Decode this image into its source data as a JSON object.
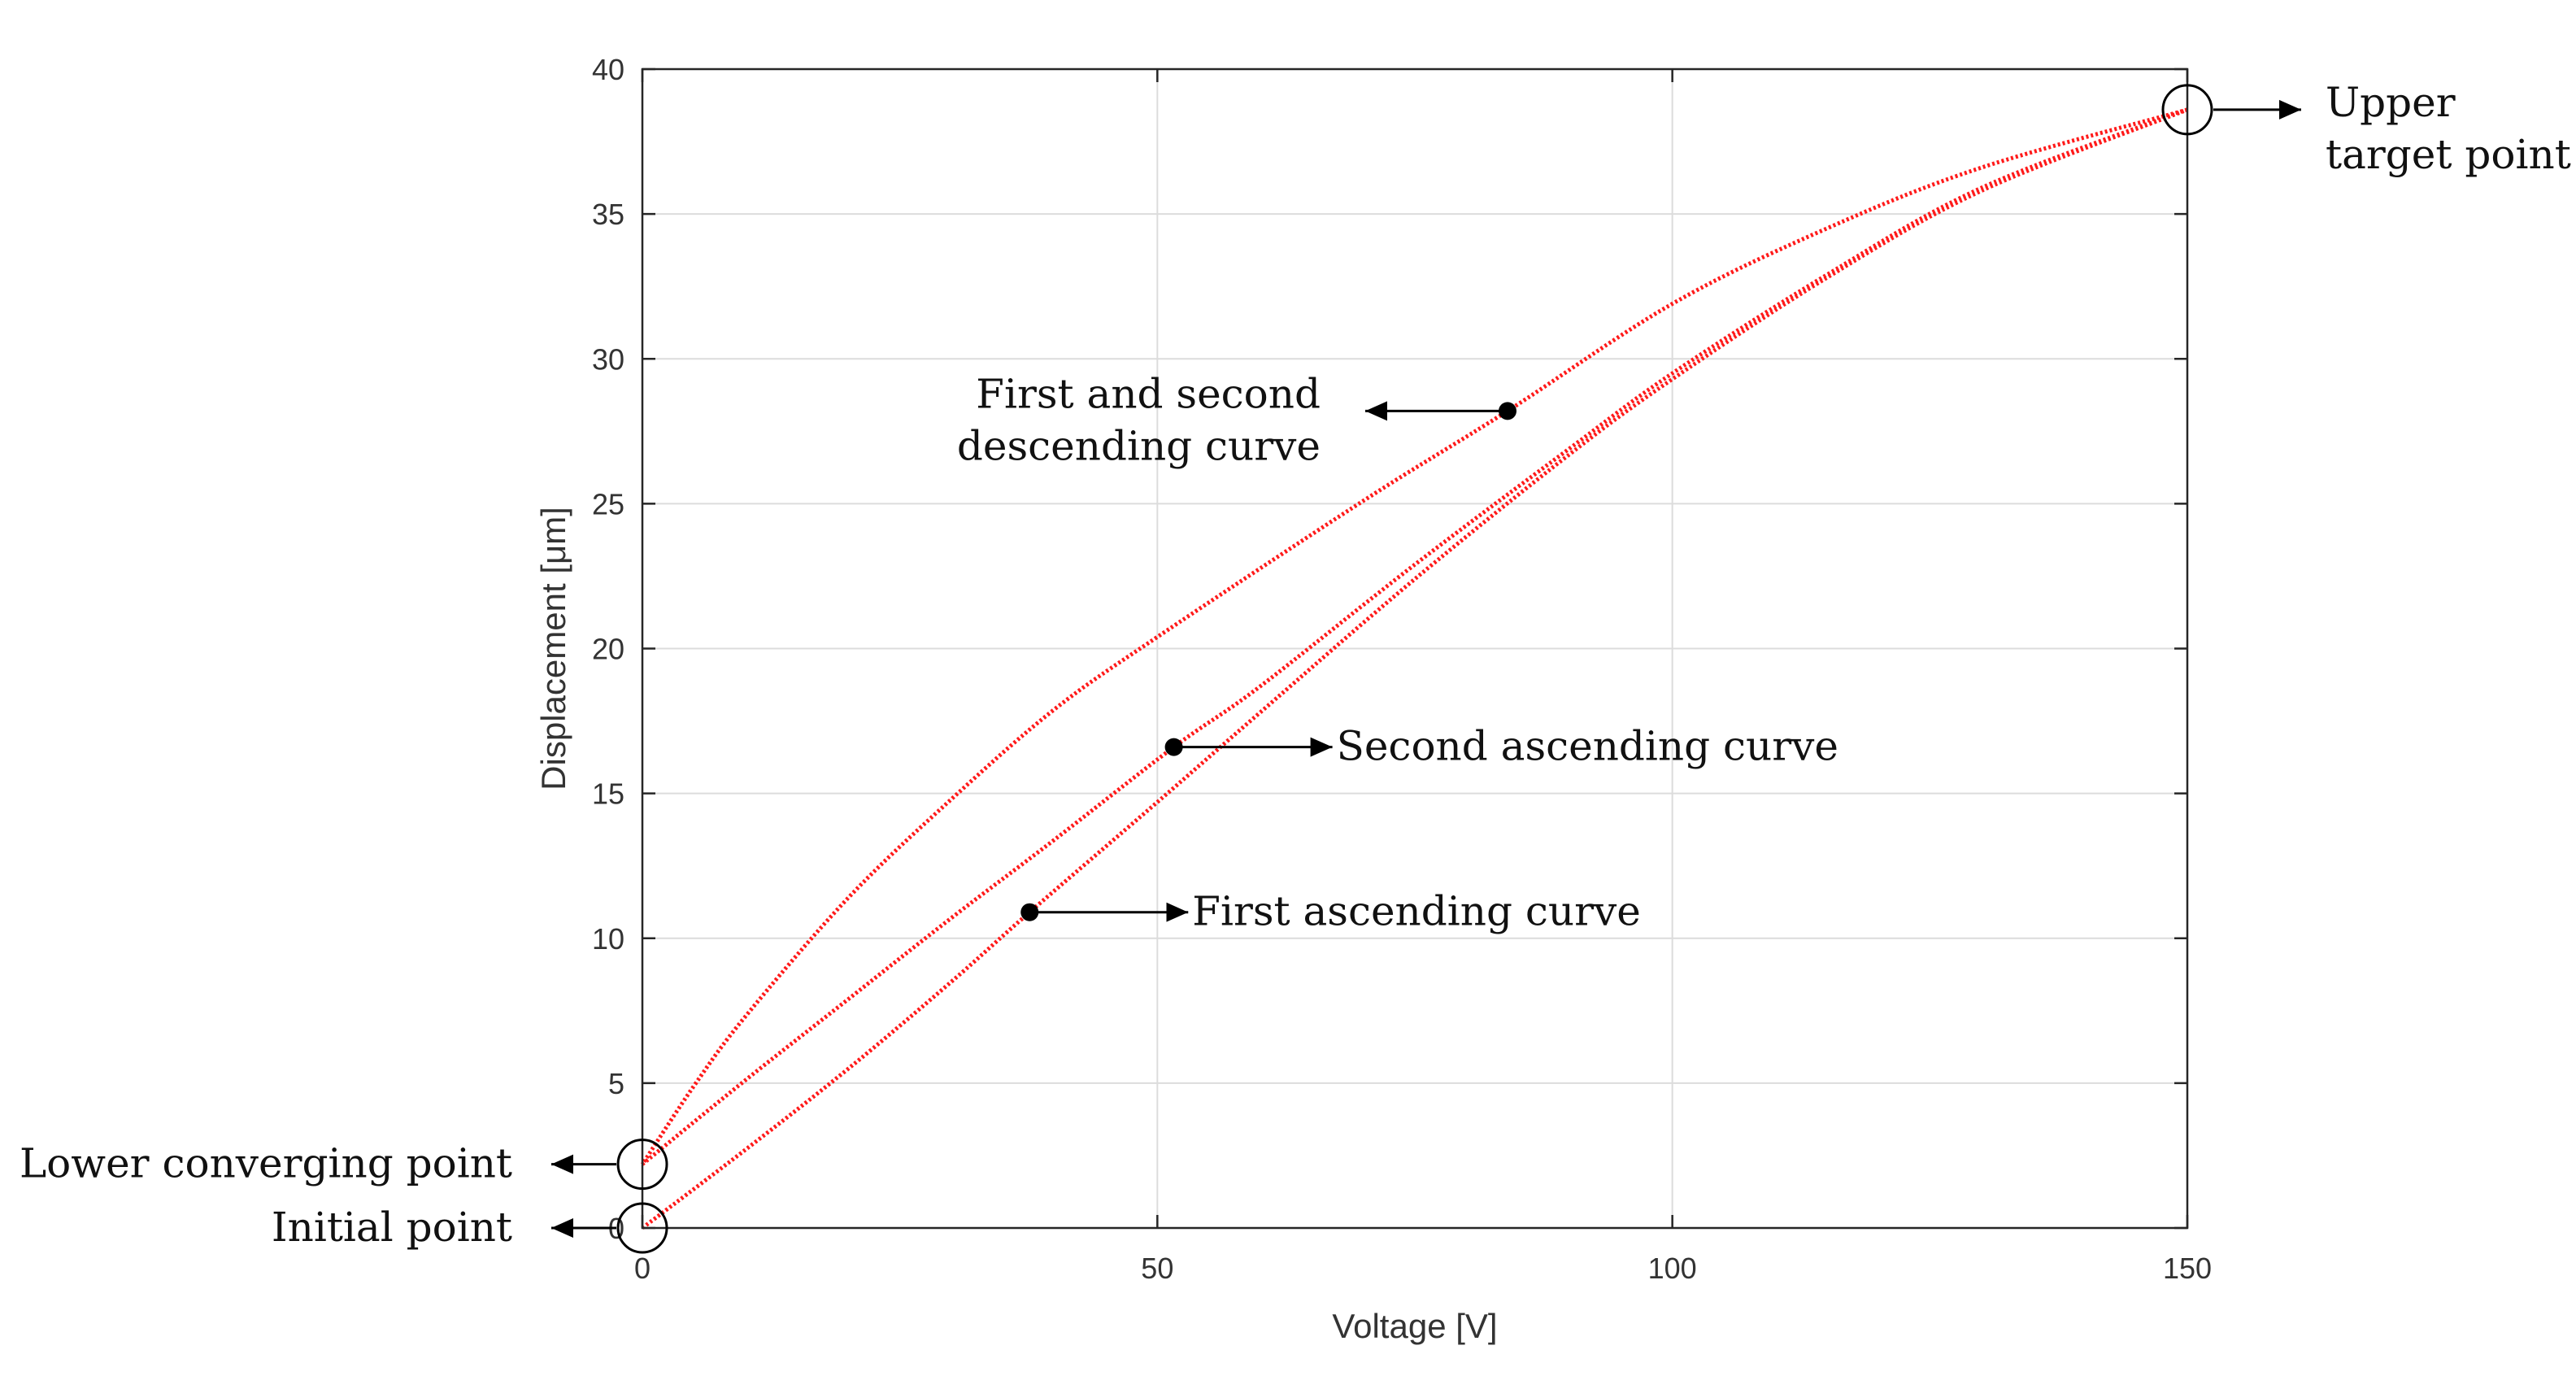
{
  "chart_data": {
    "type": "line",
    "title": "",
    "xlabel": "Voltage [V]",
    "ylabel": "Displacement [μm]",
    "xlim": [
      0,
      150
    ],
    "ylim": [
      0,
      40
    ],
    "xticks": [
      0,
      50,
      100,
      150
    ],
    "yticks": [
      0,
      5,
      10,
      15,
      20,
      25,
      30,
      35,
      40
    ],
    "xtick_labels": [
      "0",
      "50",
      "100",
      "150"
    ],
    "ytick_labels": [
      "0",
      "5",
      "10",
      "15",
      "20",
      "25",
      "30",
      "35",
      "40"
    ],
    "grid": true,
    "series": [
      {
        "name": "First ascending curve",
        "color": "#ff1a1a",
        "x": [
          0,
          10,
          20,
          30,
          37.6,
          50,
          60,
          75,
          90,
          100,
          115,
          130,
          150
        ],
        "y": [
          0,
          2.7,
          5.5,
          8.5,
          10.9,
          14.7,
          17.8,
          22.4,
          26.7,
          29.3,
          32.8,
          35.8,
          38.6
        ]
      },
      {
        "name": "Second ascending curve",
        "color": "#ff1a1a",
        "x": [
          0,
          10,
          20,
          30,
          40,
          51.6,
          60,
          75,
          90,
          100,
          115,
          130,
          150
        ],
        "y": [
          2.2,
          5.1,
          7.9,
          10.7,
          13.4,
          16.6,
          18.7,
          22.9,
          26.9,
          29.5,
          32.9,
          35.9,
          38.6
        ]
      },
      {
        "name": "First and second descending curve",
        "color": "#ff1a1a",
        "x": [
          150,
          130,
          115,
          100,
          84,
          70,
          50,
          40,
          30,
          20,
          10,
          5,
          0
        ],
        "y": [
          38.6,
          36.6,
          34.5,
          31.9,
          28.2,
          25.1,
          20.4,
          17.9,
          14.8,
          11.4,
          7.3,
          4.9,
          2.2
        ]
      }
    ],
    "annotations": [
      {
        "id": "upper_target",
        "lines": [
          "Upper",
          "target point"
        ],
        "at": [
          150,
          38.6
        ],
        "type": "circle-arrow-right"
      },
      {
        "id": "descending",
        "lines": [
          "First and second",
          "descending curve"
        ],
        "at": [
          84,
          28.2
        ],
        "type": "dot-arrow-left"
      },
      {
        "id": "second_ascending",
        "lines": [
          "Second ascending curve"
        ],
        "at": [
          51.6,
          16.6
        ],
        "type": "dot-arrow-right"
      },
      {
        "id": "first_ascending",
        "lines": [
          "First ascending curve"
        ],
        "at": [
          37.6,
          10.9
        ],
        "type": "dot-arrow-right"
      },
      {
        "id": "lower_converging",
        "lines": [
          "Lower converging point"
        ],
        "at": [
          0,
          2.2
        ],
        "type": "circle-arrow-left"
      },
      {
        "id": "initial",
        "lines": [
          "Initial point"
        ],
        "at": [
          0,
          0
        ],
        "type": "circle-arrow-left"
      }
    ]
  }
}
